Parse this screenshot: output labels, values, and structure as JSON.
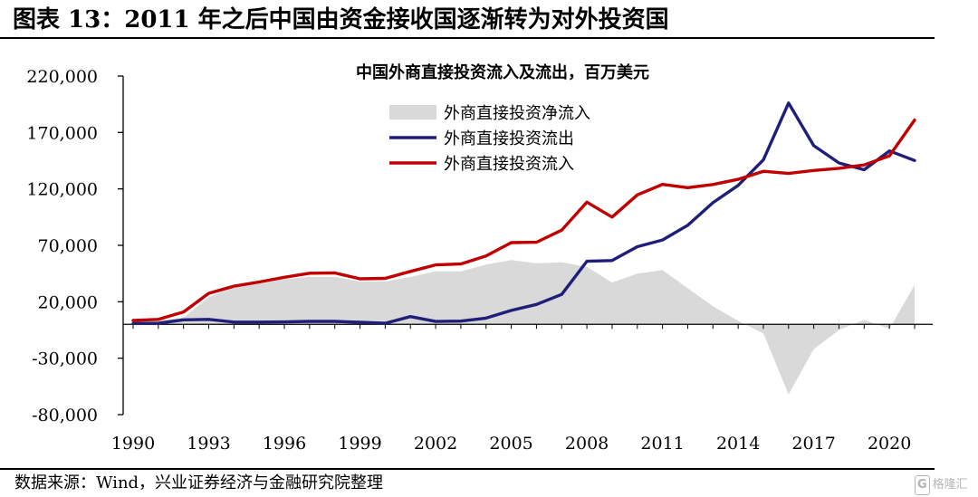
{
  "figure": {
    "title": "图表 13：2011 年之后中国由资金接收国逐渐转为对外投资国",
    "source": "数据来源：Wind，兴业证券经济与金融研究院整理",
    "watermark": "格隆汇",
    "watermark_badge": "G"
  },
  "chart_data": {
    "type": "line",
    "title": "中国外商直接投资流入及流出，百万美元",
    "xlabel": "",
    "ylabel": "",
    "x": [
      1990,
      1991,
      1992,
      1993,
      1994,
      1995,
      1996,
      1997,
      1998,
      1999,
      2000,
      2001,
      2002,
      2003,
      2004,
      2005,
      2006,
      2007,
      2008,
      2009,
      2010,
      2011,
      2012,
      2013,
      2014,
      2015,
      2016,
      2017,
      2018,
      2019,
      2020,
      2021
    ],
    "xlim": [
      1990,
      2021
    ],
    "xticks": [
      1990,
      1993,
      1996,
      1999,
      2002,
      2005,
      2008,
      2011,
      2014,
      2017,
      2020
    ],
    "ylim": [
      -80000,
      220000
    ],
    "yticks": [
      -80000,
      -30000,
      20000,
      70000,
      120000,
      170000,
      220000
    ],
    "ytick_labels": [
      "-80,000",
      "-30,000",
      "20,000",
      "70,000",
      "120,000",
      "170,000",
      "220,000"
    ],
    "grid": false,
    "legend_position": "top-center",
    "series": [
      {
        "name": "外商直接投资净流入",
        "kind": "area",
        "color": "#d9d9d9",
        "values": [
          2600,
          3500,
          6000,
          24000,
          33000,
          36000,
          40000,
          42000,
          42000,
          38000,
          38000,
          42000,
          47000,
          47000,
          53000,
          57000,
          54000,
          55000,
          51000,
          37000,
          45000,
          48000,
          32000,
          16000,
          3000,
          -8000,
          -62000,
          -22000,
          -5000,
          4000,
          -4000,
          35000
        ]
      },
      {
        "name": "外商直接投资流出",
        "kind": "line",
        "color": "#1f1f7a",
        "values": [
          800,
          900,
          4000,
          4400,
          2000,
          2000,
          2100,
          2600,
          2600,
          1800,
          900,
          6900,
          2500,
          2900,
          5500,
          12300,
          17600,
          26500,
          55900,
          56500,
          68800,
          74700,
          87800,
          107800,
          123100,
          145700,
          196100,
          158300,
          143000,
          137000,
          153700,
          145200
        ]
      },
      {
        "name": "外商直接投资流入",
        "kind": "line",
        "color": "#c00000",
        "values": [
          3500,
          4400,
          11000,
          27500,
          33800,
          37500,
          41700,
          45300,
          45500,
          40300,
          40700,
          46900,
          52700,
          53500,
          60600,
          72400,
          72700,
          83500,
          108300,
          95000,
          114700,
          124000,
          121100,
          123900,
          128500,
          135600,
          133700,
          136300,
          138300,
          141200,
          149300,
          181000
        ]
      }
    ]
  }
}
